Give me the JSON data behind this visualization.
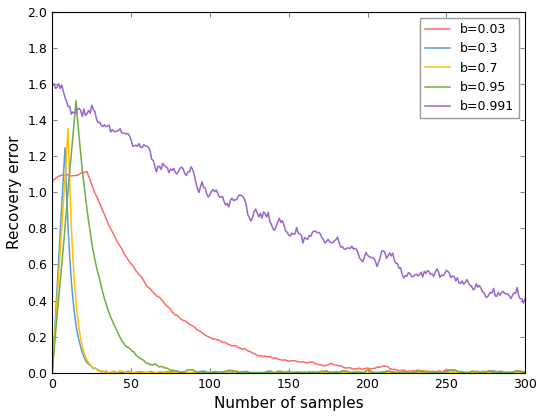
{
  "title": "",
  "xlabel": "Number of samples",
  "ylabel": "Recovery error",
  "xlim": [
    0,
    300
  ],
  "ylim": [
    0,
    2.0
  ],
  "yticks": [
    0,
    0.2,
    0.4,
    0.6,
    0.8,
    1.0,
    1.2,
    1.4,
    1.6,
    1.8,
    2.0
  ],
  "xticks": [
    0,
    50,
    100,
    150,
    200,
    250,
    300
  ],
  "series": [
    {
      "label": "b=0.03",
      "color": "#FF6B6B",
      "b": 0.03
    },
    {
      "label": "b=0.3",
      "color": "#5B9BD5",
      "b": 0.3
    },
    {
      "label": "b=0.7",
      "color": "#FFC000",
      "b": 0.7
    },
    {
      "label": "b=0.95",
      "color": "#70AD47",
      "b": 0.95
    },
    {
      "label": "b=0.991",
      "color": "#9966CC",
      "b": 0.991
    }
  ],
  "n_samples": 301,
  "seed": 42,
  "background_color": "#ffffff",
  "legend_loc": "upper right"
}
